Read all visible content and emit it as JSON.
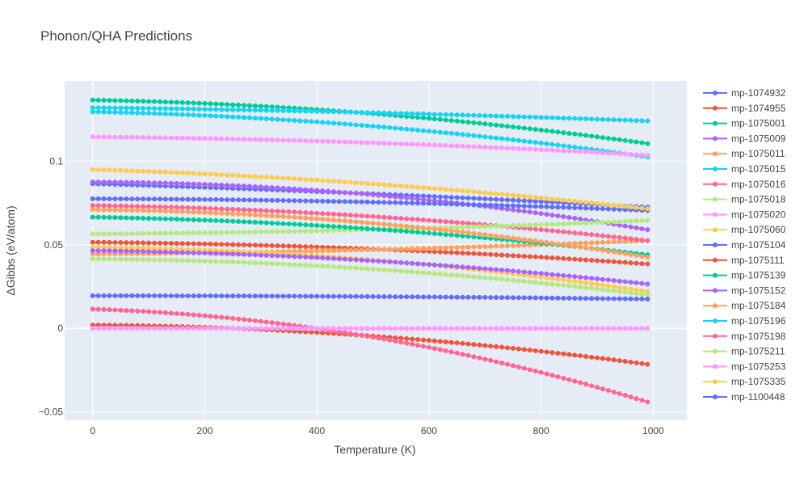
{
  "chart_data": {
    "type": "scatter",
    "mode": "lines+markers",
    "title": "Phonon/QHA Predictions",
    "xlabel": "Temperature (K)",
    "ylabel": "ΔGibbs (eV/atom)",
    "xlim": [
      -50,
      1060
    ],
    "ylim": [
      -0.055,
      0.148
    ],
    "x_ticks": [
      0,
      200,
      400,
      600,
      800,
      1000
    ],
    "y_ticks": [
      -0.05,
      0,
      0.05,
      0.1
    ],
    "y_tick_labels": [
      "−0.05",
      "0",
      "0.05",
      "0.1"
    ],
    "grid": true,
    "legend_position": "right",
    "x_start": 0,
    "x_end": 990,
    "x_step": 10,
    "series": [
      {
        "name": "mp-1074932",
        "color": "#636efa",
        "y_start": 0.0865,
        "y_mid": 0.0805,
        "y_end": 0.0725
      },
      {
        "name": "mp-1074955",
        "color": "#EF553B",
        "y_start": 0.0515,
        "y_mid": 0.0475,
        "y_end": 0.0385
      },
      {
        "name": "mp-1075001",
        "color": "#00cc96",
        "y_start": 0.1365,
        "y_mid": 0.1285,
        "y_end": 0.1105
      },
      {
        "name": "mp-1075009",
        "color": "#ab63fa",
        "y_start": 0.0875,
        "y_mid": 0.08,
        "y_end": 0.059
      },
      {
        "name": "mp-1075011",
        "color": "#FFA15A",
        "y_start": 0.0445,
        "y_mid": 0.047,
        "y_end": 0.0525
      },
      {
        "name": "mp-1075015",
        "color": "#19d3f3",
        "y_start": 0.1295,
        "y_mid": 0.121,
        "y_end": 0.1025
      },
      {
        "name": "mp-1075016",
        "color": "#FF6692",
        "y_start": 0.0735,
        "y_mid": 0.067,
        "y_end": 0.0525
      },
      {
        "name": "mp-1075018",
        "color": "#B6E880",
        "y_start": 0.0565,
        "y_mid": 0.059,
        "y_end": 0.0645
      },
      {
        "name": "mp-1075020",
        "color": "#FF97FF",
        "y_start": 0.1145,
        "y_mid": 0.111,
        "y_end": 0.1035
      },
      {
        "name": "mp-1075060",
        "color": "#FECB52",
        "y_start": 0.0485,
        "y_mid": 0.041,
        "y_end": 0.022
      },
      {
        "name": "mp-1075104",
        "color": "#636efa",
        "y_start": 0.0775,
        "y_mid": 0.0755,
        "y_end": 0.0705
      },
      {
        "name": "mp-1075111",
        "color": "#EF553B",
        "y_start": 0.002,
        "y_mid": -0.0045,
        "y_end": -0.0215
      },
      {
        "name": "mp-1075139",
        "color": "#00cc96",
        "y_start": 0.0665,
        "y_mid": 0.0595,
        "y_end": 0.044
      },
      {
        "name": "mp-1075152",
        "color": "#ab63fa",
        "y_start": 0.0465,
        "y_mid": 0.0405,
        "y_end": 0.0265
      },
      {
        "name": "mp-1075184",
        "color": "#FFA15A",
        "y_start": 0.071,
        "y_mid": 0.063,
        "y_end": 0.0425
      },
      {
        "name": "mp-1075196",
        "color": "#19d3f3",
        "y_start": 0.132,
        "y_mid": 0.129,
        "y_end": 0.124
      },
      {
        "name": "mp-1075198",
        "color": "#FF6692",
        "y_start": 0.0115,
        "y_mid": -0.005,
        "y_end": -0.044
      },
      {
        "name": "mp-1075211",
        "color": "#B6E880",
        "y_start": 0.0415,
        "y_mid": 0.0355,
        "y_end": 0.02
      },
      {
        "name": "mp-1075253",
        "color": "#FF97FF",
        "y_start": 0.0,
        "y_mid": 0.0,
        "y_end": 0.0
      },
      {
        "name": "mp-1075335",
        "color": "#FECB52",
        "y_start": 0.095,
        "y_mid": 0.0865,
        "y_end": 0.0715
      },
      {
        "name": "mp-1100448",
        "color": "#636efa",
        "y_start": 0.0195,
        "y_mid": 0.019,
        "y_end": 0.0175
      }
    ]
  }
}
